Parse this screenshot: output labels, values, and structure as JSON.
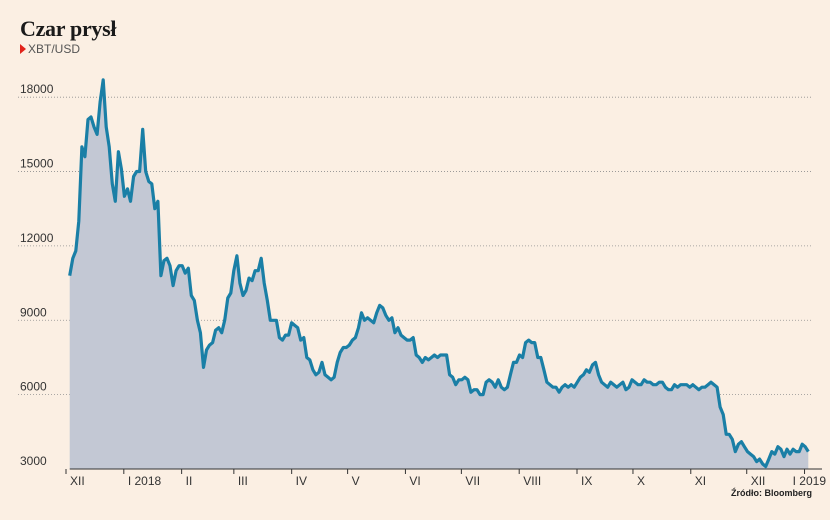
{
  "chart_data": {
    "type": "area",
    "title": "Czar prysł",
    "series": [
      {
        "name": "XBT/USD",
        "values": [
          10800,
          11500,
          11800,
          13000,
          16000,
          15600,
          17100,
          17200,
          16800,
          16500,
          17800,
          18700,
          16800,
          16000,
          14500,
          13800,
          15800,
          15100,
          14000,
          14300,
          13800,
          14800,
          15000,
          15000,
          16700,
          15000,
          14600,
          14500,
          13500,
          13800,
          10800,
          11400,
          11500,
          11200,
          10400,
          11000,
          11200,
          11200,
          10900,
          11100,
          10000,
          9800,
          9000,
          8500,
          7100,
          7800,
          8000,
          8100,
          8600,
          8700,
          8500,
          9000,
          9900,
          10100,
          11000,
          11600,
          10500,
          10000,
          10200,
          10700,
          10600,
          11000,
          11000,
          11500,
          10500,
          9800,
          9000,
          9000,
          9000,
          8300,
          8200,
          8400,
          8400,
          8900,
          8800,
          8700,
          8200,
          8300,
          7500,
          7400,
          7000,
          6800,
          6900,
          7300,
          6800,
          6700,
          6600,
          6700,
          7300,
          7700,
          7900,
          7900,
          8000,
          8200,
          8300,
          8700,
          9300,
          9000,
          9100,
          9000,
          8900,
          9300,
          9600,
          9500,
          9200,
          9000,
          9100,
          8500,
          8700,
          8400,
          8300,
          8200,
          8200,
          8300,
          7600,
          7500,
          7300,
          7500,
          7400,
          7500,
          7600,
          7500,
          7600,
          7600,
          7600,
          6800,
          6700,
          6400,
          6600,
          6600,
          6700,
          6600,
          6100,
          6200,
          6200,
          6000,
          6000,
          6500,
          6600,
          6500,
          6300,
          6600,
          6300,
          6200,
          6300,
          6800,
          7300,
          7300,
          7600,
          7500,
          8100,
          8200,
          8100,
          8100,
          7500,
          7500,
          7000,
          6500,
          6400,
          6300,
          6300,
          6100,
          6300,
          6400,
          6300,
          6400,
          6300,
          6500,
          6700,
          6800,
          7000,
          6900,
          7200,
          7300,
          6800,
          6500,
          6400,
          6300,
          6500,
          6400,
          6300,
          6400,
          6500,
          6200,
          6300,
          6600,
          6500,
          6400,
          6400,
          6600,
          6500,
          6500,
          6400,
          6400,
          6500,
          6500,
          6300,
          6200,
          6200,
          6400,
          6300,
          6400,
          6400,
          6400,
          6300,
          6400,
          6300,
          6200,
          6300,
          6300,
          6400,
          6500,
          6400,
          6300,
          5500,
          5200,
          4400,
          4400,
          4200,
          3700,
          4000,
          4100,
          3900,
          3700,
          3600,
          3500,
          3300,
          3400,
          3200,
          3100,
          3400,
          3700,
          3600,
          3900,
          3800,
          3500,
          3800,
          3600,
          3800,
          3700,
          3700,
          4000,
          3900,
          3700
        ]
      }
    ],
    "x_tick_labels": [
      "XII",
      "I 2018",
      "II",
      "III",
      "IV",
      "V",
      "VI",
      "VII",
      "VIII",
      "IX",
      "X",
      "XI",
      "XII",
      "I 2019"
    ],
    "x_tick_positions": [
      0,
      31,
      62,
      90,
      121,
      151,
      182,
      212,
      243,
      274,
      304,
      335,
      365,
      396
    ],
    "y_ticks": [
      3000,
      6000,
      9000,
      12000,
      15000,
      18000
    ],
    "ylim": [
      3000,
      19500
    ],
    "xlim": [
      0,
      400
    ],
    "grid": "horizontal dotted",
    "colors": {
      "line": "#1a7fa6",
      "area": "#c3c8d4",
      "background": "#fbefe3",
      "marker": "#e2231a"
    }
  },
  "source": "Źródło: Bloomberg"
}
